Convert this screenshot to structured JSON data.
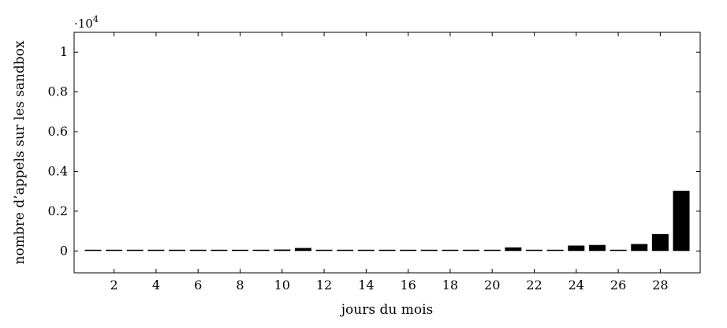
{
  "chart_data": {
    "type": "bar",
    "xlabel": "jours du mois",
    "ylabel": "nombre d’appels sur les sandbox",
    "y_multiplier": {
      "base": "·10",
      "exponent": "4"
    },
    "ylim": [
      -1100,
      11000
    ],
    "xlim": [
      0.1,
      29.9
    ],
    "grid": false,
    "bar_color": "#000000",
    "x_ticks": [
      2,
      4,
      6,
      8,
      10,
      12,
      14,
      16,
      18,
      20,
      22,
      24,
      26,
      28
    ],
    "y_ticks": [
      0,
      2000,
      4000,
      6000,
      8000,
      10000
    ],
    "y_tick_labels": [
      "0",
      "0.2",
      "0.4",
      "0.6",
      "0.8",
      "1"
    ],
    "x": [
      1,
      2,
      3,
      4,
      5,
      6,
      7,
      8,
      9,
      10,
      11,
      12,
      13,
      14,
      15,
      16,
      17,
      18,
      19,
      20,
      21,
      22,
      23,
      24,
      25,
      26,
      27,
      28,
      29
    ],
    "values": [
      10,
      10,
      10,
      10,
      10,
      60,
      10,
      20,
      60,
      70,
      150,
      10,
      10,
      10,
      10,
      10,
      10,
      10,
      10,
      10,
      180,
      10,
      10,
      270,
      300,
      60,
      350,
      850,
      3030
    ]
  }
}
